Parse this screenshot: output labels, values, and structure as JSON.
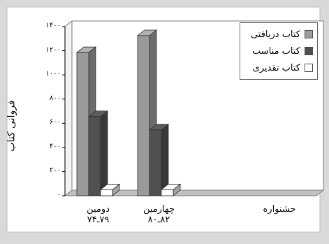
{
  "chart_data": {
    "type": "bar",
    "title": "",
    "xlabel": "جشنواره",
    "ylabel": "فروانی کتاب",
    "ylim": [
      0,
      1400
    ],
    "y_ticks": [
      "۰",
      "۲۰۰",
      "۴۰۰",
      "۶۰۰",
      "۸۰۰",
      "۱۰۰۰",
      "۱۲۰۰",
      "۱۴۰۰"
    ],
    "y_tick_values": [
      0,
      200,
      400,
      600,
      800,
      1000,
      1200,
      1400
    ],
    "categories": [
      {
        "name": "دومین",
        "range": "۷۹ـ۷۴"
      },
      {
        "name": "چهارمین",
        "range": "۸۲ـ۸۰"
      }
    ],
    "series": [
      {
        "name": "کتاب دریافتی",
        "values": [
          1185,
          1325
        ],
        "color": "#9a9a9a"
      },
      {
        "name": "کتاب مناسب",
        "values": [
          655,
          545
        ],
        "color": "#505050"
      },
      {
        "name": "کتاب تقدیری",
        "values": [
          50,
          50
        ],
        "color": "#ffffff"
      }
    ],
    "legend_position": "top-right",
    "grid": false,
    "three_d": true
  }
}
